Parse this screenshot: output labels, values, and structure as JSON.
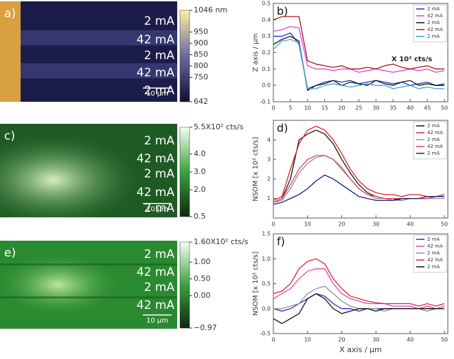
{
  "chart_data": [
    {
      "type": "image",
      "label": "a)",
      "row_labels": [
        "2 mA",
        "42 mA",
        "2 mA",
        "42 mA",
        "2 mA"
      ],
      "scale_bar": "10 μm",
      "clim": [
        642,
        1046
      ],
      "cbar_ticks": [
        {
          "value": 1046,
          "label": "1046 nm"
        },
        950,
        900,
        850,
        800,
        750,
        642
      ]
    },
    {
      "type": "line",
      "label": "b)",
      "ylabel": "Z axis / μm",
      "annotation": "X 10² cts/s",
      "x": [
        0,
        2.5,
        5,
        7.5,
        10,
        12.5,
        15,
        17.5,
        20,
        22.5,
        25,
        27.5,
        30,
        32.5,
        35,
        37.5,
        40,
        42.5,
        45,
        47.5,
        50
      ],
      "xlim": [
        0,
        51
      ],
      "xticks": [
        0,
        5,
        10,
        15,
        20,
        25,
        30,
        35,
        40,
        45,
        50
      ],
      "ylim": [
        -0.1,
        0.5
      ],
      "yticks": [
        {
          "value": -0.1,
          "label": "-0.1"
        },
        {
          "value": 0,
          "label": "0.0"
        },
        0.1,
        0.2,
        0.3,
        0.4,
        0.5
      ],
      "series": [
        {
          "name": "2 mA",
          "color": "#1f2fc8",
          "values": [
            0.3,
            0.3,
            0.32,
            0.25,
            -0.02,
            0,
            0.02,
            0.03,
            0.02,
            0.03,
            0.01,
            0.02,
            0.03,
            0.02,
            0.01,
            0.02,
            0,
            0.01,
            0.02,
            0,
            0.01
          ]
        },
        {
          "name": "42 mA",
          "color": "#e040e0",
          "values": [
            0.33,
            0.34,
            0.36,
            0.35,
            0.12,
            0.1,
            0.1,
            0.09,
            0.1,
            0.1,
            0.08,
            0.09,
            0.1,
            0.09,
            0.08,
            0.09,
            0.1,
            0.09,
            0.1,
            0.08,
            0.09
          ]
        },
        {
          "name": "2 mA",
          "color": "#111111",
          "values": [
            0.25,
            0.28,
            0.3,
            0.27,
            -0.03,
            0,
            0.01,
            0.03,
            0,
            0.02,
            0.01,
            0,
            0.03,
            0.01,
            0,
            0.02,
            0.03,
            0,
            0.01,
            0,
            0
          ]
        },
        {
          "name": "42 mA",
          "color": "#a01818",
          "values": [
            0.4,
            0.42,
            0.42,
            0.42,
            0.15,
            0.13,
            0.12,
            0.11,
            0.12,
            0.1,
            0.1,
            0.11,
            0.1,
            0.12,
            0.13,
            0.11,
            0.1,
            0.11,
            0.12,
            0.1,
            0.1
          ]
        },
        {
          "name": "2 mA",
          "color": "#3aa0e0",
          "values": [
            0.22,
            0.27,
            0.28,
            0.26,
            -0.02,
            -0.02,
            0,
            0.01,
            0,
            -0.01,
            0,
            0.01,
            0,
            0,
            -0.02,
            -0.01,
            0,
            -0.02,
            -0.01,
            -0.02,
            -0.02
          ]
        }
      ]
    },
    {
      "type": "image",
      "label": "c)",
      "row_labels": [
        "2 mA",
        "42 mA",
        "2 mA",
        "42 mA",
        "2 mA"
      ],
      "scale_bar": "10 μm",
      "clim": [
        0.5,
        5.5
      ],
      "cbar_ticks": [
        {
          "value": 5.5,
          "label": "5.5X10² cts/s"
        },
        {
          "value": 4,
          "label": "4.0"
        },
        {
          "value": 3,
          "label": "3.0"
        },
        {
          "value": 2,
          "label": "2.0"
        },
        0.5
      ]
    },
    {
      "type": "line",
      "label": "d)",
      "ylabel": "NSOM  [x 10² cts/s]",
      "x": [
        0,
        2.5,
        5,
        7.5,
        10,
        12.5,
        15,
        17.5,
        20,
        22.5,
        25,
        27.5,
        30,
        32.5,
        35,
        37.5,
        40,
        42.5,
        45,
        47.5,
        50
      ],
      "xlim": [
        0,
        51
      ],
      "xticks": [
        0,
        10,
        20,
        30,
        40,
        50
      ],
      "ylim": [
        0,
        5
      ],
      "yticks": [
        1,
        2,
        3,
        4
      ],
      "series": [
        {
          "name": "2 mA",
          "color": "#111111",
          "values": [
            0.8,
            1,
            2,
            4,
            4.3,
            4.5,
            4.3,
            3.8,
            3,
            2.3,
            1.7,
            1.3,
            1.1,
            1,
            1,
            0.9,
            1,
            1,
            1,
            1.1,
            1.1
          ]
        },
        {
          "name": "42 mA",
          "color": "#e02020",
          "values": [
            0.9,
            1.1,
            2.5,
            3.8,
            4.5,
            4.7,
            4.5,
            4,
            3.3,
            2.5,
            1.9,
            1.5,
            1.3,
            1.2,
            1.2,
            1.1,
            1.2,
            1.2,
            1.1,
            1.1,
            1.2
          ]
        },
        {
          "name": "2 mA",
          "color": "#909090",
          "values": [
            0.8,
            0.9,
            1.5,
            2.3,
            2.8,
            3.1,
            3.2,
            3,
            2.6,
            2,
            1.5,
            1.2,
            1,
            1,
            0.9,
            0.9,
            1,
            1,
            1,
            1,
            1
          ]
        },
        {
          "name": "42 mA",
          "color": "#e04060",
          "values": [
            0.8,
            1,
            1.7,
            2.5,
            3,
            3.2,
            3.2,
            3,
            2.5,
            2,
            1.5,
            1.2,
            1.1,
            1,
            1,
            1,
            1,
            1,
            1,
            1.1,
            1.1
          ]
        },
        {
          "name": "2 mA",
          "color": "#1a1a70",
          "values": [
            0.7,
            0.8,
            1,
            1.2,
            1.5,
            1.9,
            2.2,
            2,
            1.7,
            1.4,
            1.1,
            1,
            0.9,
            0.9,
            0.9,
            1,
            1,
            1,
            1.1,
            1.1,
            1.1
          ]
        }
      ]
    },
    {
      "type": "image",
      "label": "e)",
      "row_labels": [
        "2 mA",
        "42 mA",
        "2 mA",
        "42 mA"
      ],
      "scale_bar": "10 μm",
      "clim": [
        -0.97,
        1.6
      ],
      "cbar_ticks": [
        {
          "value": 1.6,
          "label": "1.60X10² cts/s"
        },
        {
          "value": 1,
          "label": "1.00"
        },
        {
          "value": 0.5,
          "label": "0.50"
        },
        {
          "value": 0,
          "label": "0.00"
        },
        {
          "value": -0.97,
          "label": "−0.97"
        }
      ]
    },
    {
      "type": "line",
      "label": "f)",
      "ylabel": "NSOM  [x 10² cts/s]",
      "xlabel": "X axis / μm",
      "x": [
        0,
        2.5,
        5,
        7.5,
        10,
        12.5,
        15,
        17.5,
        20,
        22.5,
        25,
        27.5,
        30,
        32.5,
        35,
        37.5,
        40,
        42.5,
        45,
        47.5,
        50
      ],
      "xlim": [
        0,
        51
      ],
      "xticks": [
        0,
        10,
        20,
        30,
        40,
        50
      ],
      "ylim": [
        -0.5,
        1.5
      ],
      "yticks": [
        {
          "value": -0.5,
          "label": "-0.5"
        },
        {
          "value": 0,
          "label": "0.0"
        },
        0.5,
        {
          "value": 1,
          "label": "1.0"
        },
        1.5
      ],
      "series": [
        {
          "name": "2 mA",
          "color": "#1f2fc8",
          "values": [
            0,
            -0.05,
            0,
            0.1,
            0.2,
            0.3,
            0.25,
            0.1,
            0,
            0,
            -0.05,
            0,
            0,
            0,
            0,
            0,
            0,
            0,
            0,
            0,
            0
          ]
        },
        {
          "name": "42 mA",
          "color": "#e040c0",
          "values": [
            0.2,
            0.3,
            0.4,
            0.6,
            0.75,
            0.8,
            0.8,
            0.5,
            0.3,
            0.2,
            0.15,
            0.1,
            0.1,
            0.1,
            0.05,
            0.05,
            0.05,
            0,
            0.05,
            0,
            0.05
          ]
        },
        {
          "name": "2 mA",
          "color": "#909090",
          "values": [
            0,
            0,
            0.05,
            0.1,
            0.3,
            0.4,
            0.45,
            0.3,
            0.15,
            0.05,
            0,
            0,
            0,
            -0.05,
            0,
            0,
            0,
            0,
            -0.05,
            0,
            0
          ]
        },
        {
          "name": "42 mA",
          "color": "#e02030",
          "values": [
            0.3,
            0.35,
            0.5,
            0.8,
            0.95,
            1,
            0.9,
            0.6,
            0.4,
            0.25,
            0.2,
            0.15,
            0.12,
            0.1,
            0.1,
            0.1,
            0.1,
            0.05,
            0.1,
            0.05,
            0.1
          ]
        },
        {
          "name": "2 mA",
          "color": "#111111",
          "values": [
            -0.2,
            -0.3,
            -0.2,
            -0.1,
            0.2,
            0.3,
            0.2,
            0,
            -0.1,
            -0.05,
            0,
            0,
            -0.05,
            0,
            0,
            0,
            0,
            0,
            0,
            0,
            0
          ]
        }
      ]
    }
  ]
}
